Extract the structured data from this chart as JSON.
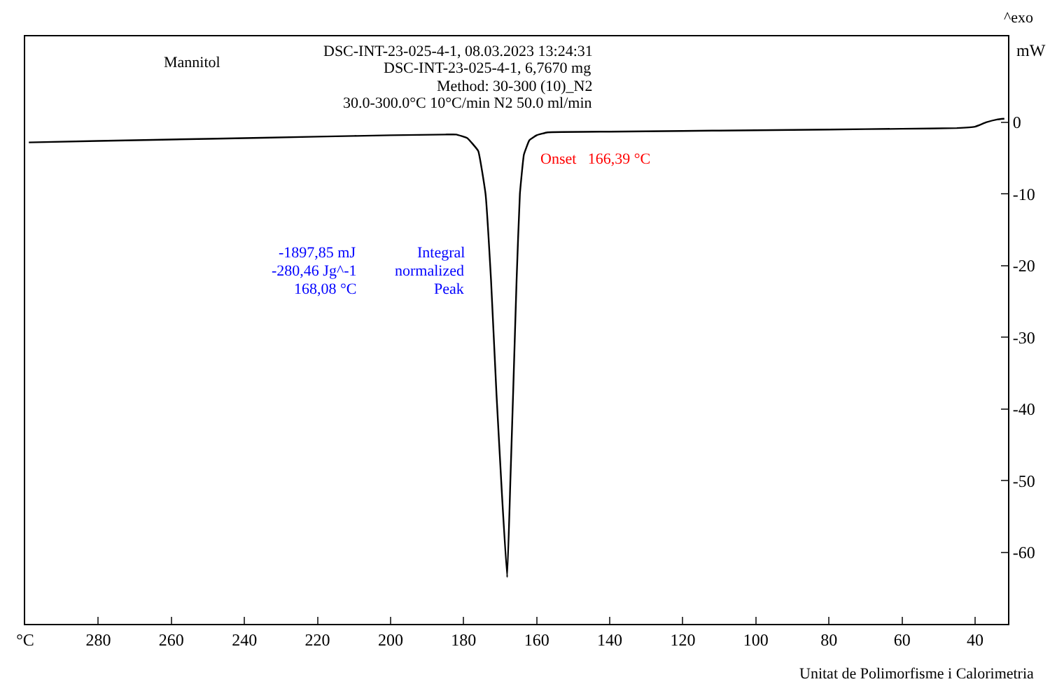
{
  "chart_data": {
    "type": "line",
    "annotations": [
      "^exo",
      "DSC-INT-23-025-4-1, 08.03.2023 13:24:31",
      "DSC-INT-23-025-4-1, 6,7670 mg",
      "Method: 30-300 (10)_N2",
      "30.0-300.0°C 10°C/min N2 50.0 ml/min",
      "Mannitol",
      "Integral",
      "-1897,85 mJ",
      "normalized",
      "-280,46 Jg^-1",
      "Peak",
      "168,08 °C",
      "Onset   166,39 °C",
      "Unitat de Polimorfisme i Calorimetria"
    ],
    "ylabel": "mW",
    "series": [
      {
        "color": "#000000",
        "x": [
          299,
          280,
          250,
          220,
          200,
          185,
          182,
          179,
          176,
          174,
          172.5,
          171,
          169.5,
          168.08,
          167.2,
          166.4,
          165.5,
          164.6,
          163.5,
          162,
          160,
          157,
          140,
          120,
          100,
          80,
          60,
          45,
          40,
          37,
          34,
          32
        ],
        "values": [
          -2.8,
          -2.6,
          -2.3,
          -2.0,
          -1.8,
          -1.7,
          -1.7,
          -2.2,
          -4,
          -10,
          -22,
          -38,
          -52,
          -63.5,
          -50,
          -37,
          -22,
          -10,
          -4.5,
          -2.5,
          -1.8,
          -1.4,
          -1.3,
          -1.2,
          -1.1,
          -1.0,
          -0.9,
          -0.8,
          -0.6,
          0,
          0.4,
          0.5
        ]
      }
    ],
    "xlim": [
      300,
      31
    ],
    "xticks": [
      {
        "value": 300,
        "label": "°C"
      },
      280,
      260,
      240,
      220,
      200,
      180,
      160,
      140,
      120,
      100,
      80,
      60,
      40
    ],
    "ylim": [
      -70,
      12
    ],
    "yticks": [
      -60,
      -50,
      -40,
      -30,
      -20,
      -10,
      0
    ]
  }
}
